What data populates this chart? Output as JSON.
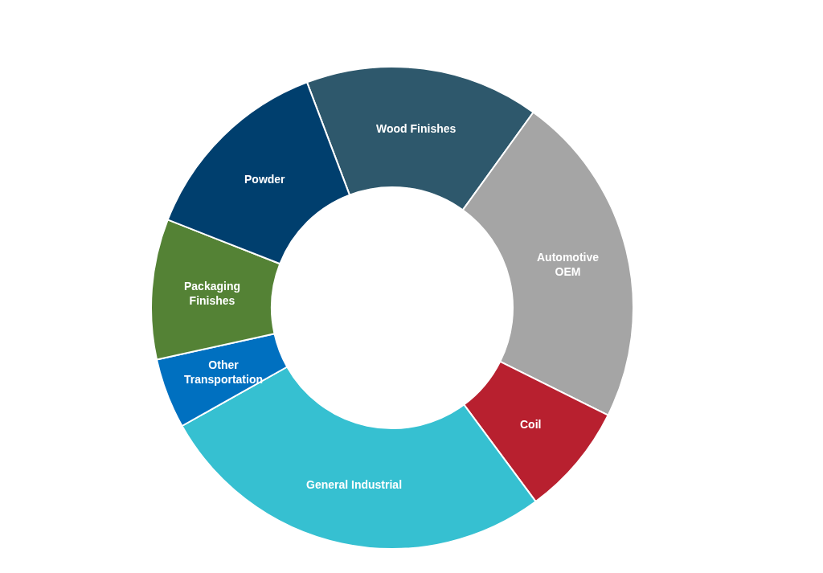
{
  "chart_data": {
    "type": "donut",
    "categories": [
      "Wood Finishes",
      "Automotive\nOEM",
      "Coil",
      "General Industrial",
      "Other\nTransportation",
      "Packaging\nFinishes",
      "Powder"
    ],
    "values": [
      15.7,
      22.4,
      7.5,
      27.0,
      4.7,
      9.4,
      13.3
    ],
    "colors": [
      "#2e586c",
      "#a5a5a5",
      "#b8202f",
      "#36c0d1",
      "#0070c0",
      "#548235",
      "#003f6e"
    ],
    "legend": false
  }
}
